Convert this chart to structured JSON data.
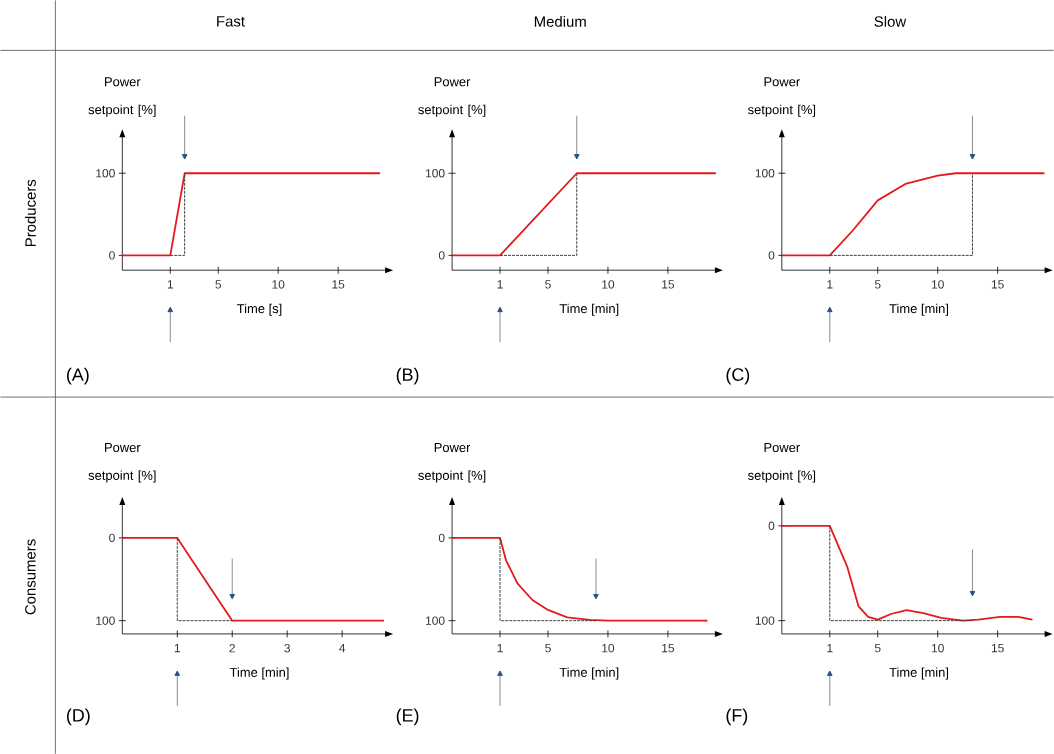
{
  "chart_data": [
    {
      "type": "line",
      "title": "Fast",
      "xlabel": "Time [s]",
      "ylabel": "Power setpoint [%]",
      "xlim": [
        -3,
        19
      ],
      "ylim": [
        -18,
        145
      ],
      "xticks": [
        1,
        5,
        10,
        15
      ],
      "yticks": [
        0,
        100
      ],
      "annotations": [
        "(A)",
        "Producers"
      ],
      "series": [
        {
          "color": "#e41a1c",
          "x": [
            -3,
            1,
            2.2,
            18.5
          ],
          "values": [
            0,
            0,
            100,
            100
          ]
        },
        {
          "color": "#404040",
          "line_style": "dashed",
          "x": [
            1,
            2.2,
            2.2
          ],
          "values": [
            0,
            0,
            100
          ]
        }
      ]
    },
    {
      "type": "line",
      "title": "Medium",
      "xlabel": "Time [min]",
      "ylabel": "Power setpoint [%]",
      "xlim": [
        -3,
        19
      ],
      "ylim": [
        -18,
        145
      ],
      "xticks": [
        1,
        5,
        10,
        15
      ],
      "yticks": [
        0,
        100
      ],
      "annotations": [
        "(B)"
      ],
      "series": [
        {
          "color": "#e41a1c",
          "x": [
            -3,
            1,
            7.4,
            19
          ],
          "values": [
            0,
            0,
            100,
            100
          ]
        },
        {
          "color": "#404040",
          "line_style": "dashed",
          "x": [
            1,
            7.4,
            7.4
          ],
          "values": [
            0,
            0,
            100
          ]
        }
      ]
    },
    {
      "type": "line",
      "title": "Slow",
      "xlabel": "Time [min]",
      "ylabel": "Power setpoint [%]",
      "xlim": [
        -3,
        19
      ],
      "ylim": [
        -18,
        145
      ],
      "xticks": [
        1,
        5,
        10,
        15
      ],
      "yticks": [
        0,
        100
      ],
      "annotations": [
        "(C)"
      ],
      "series": [
        {
          "color": "#e41a1c",
          "x": [
            -3,
            1,
            2.9,
            5,
            7.3,
            10,
            11.5,
            18.9
          ],
          "values": [
            0,
            0,
            30,
            67,
            87,
            97,
            100,
            100
          ]
        },
        {
          "color": "#404040",
          "line_style": "dashed",
          "x": [
            1,
            12.9,
            12.9
          ],
          "values": [
            0,
            0,
            100
          ]
        }
      ]
    },
    {
      "type": "line",
      "xlabel": "Time [min]",
      "ylabel": "Power setpoint [%]",
      "xlim": [
        0,
        4.8
      ],
      "ylim": [
        116,
        -41
      ],
      "xticks": [
        1,
        2,
        3,
        4
      ],
      "yticks": [
        0,
        100
      ],
      "annotations": [
        "(D)",
        "Consumers"
      ],
      "series": [
        {
          "color": "#e41a1c",
          "x": [
            0,
            1,
            2,
            4.76
          ],
          "values": [
            0,
            0,
            100,
            100
          ]
        },
        {
          "color": "#404040",
          "line_style": "dashed",
          "x": [
            1,
            1,
            2
          ],
          "values": [
            0,
            100,
            100
          ]
        }
      ]
    },
    {
      "type": "line",
      "xlabel": "Time [min]",
      "ylabel": "Power setpoint [%]",
      "xlim": [
        -3,
        19
      ],
      "ylim": [
        116,
        -41
      ],
      "xticks": [
        1,
        5,
        10,
        15
      ],
      "yticks": [
        0,
        100
      ],
      "annotations": [
        "(E)"
      ],
      "series": [
        {
          "color": "#e41a1c",
          "x": [
            -3,
            1,
            1.5,
            2.45,
            3.7,
            5,
            6.6,
            8.5,
            10,
            18.3
          ],
          "values": [
            0,
            0,
            27,
            55,
            75,
            87,
            96,
            99,
            100,
            100
          ]
        },
        {
          "color": "#404040",
          "line_style": "dashed",
          "x": [
            1,
            1,
            9
          ],
          "values": [
            0,
            100,
            100
          ]
        }
      ]
    },
    {
      "type": "line",
      "xlabel": "Time [min]",
      "ylabel": "Power setpoint [%]",
      "xlim": [
        -3,
        19
      ],
      "ylim": [
        114,
        -23
      ],
      "xticks": [
        1,
        5,
        10,
        15
      ],
      "yticks": [
        0,
        100
      ],
      "annotations": [
        "(F)"
      ],
      "series": [
        {
          "color": "#e41a1c",
          "x": [
            -3,
            1,
            2.45,
            3.4,
            4.2,
            5,
            6.1,
            7.4,
            8.8,
            10.3,
            12.1,
            13.4,
            15.2,
            16.7,
            17.9
          ],
          "values": [
            0,
            0,
            43,
            85,
            96,
            99,
            93,
            89,
            92,
            97,
            100,
            99,
            96,
            96,
            99
          ]
        },
        {
          "color": "#404040",
          "line_style": "dashed",
          "x": [
            1,
            1,
            12.9
          ],
          "values": [
            0,
            100,
            100
          ]
        }
      ]
    }
  ]
}
